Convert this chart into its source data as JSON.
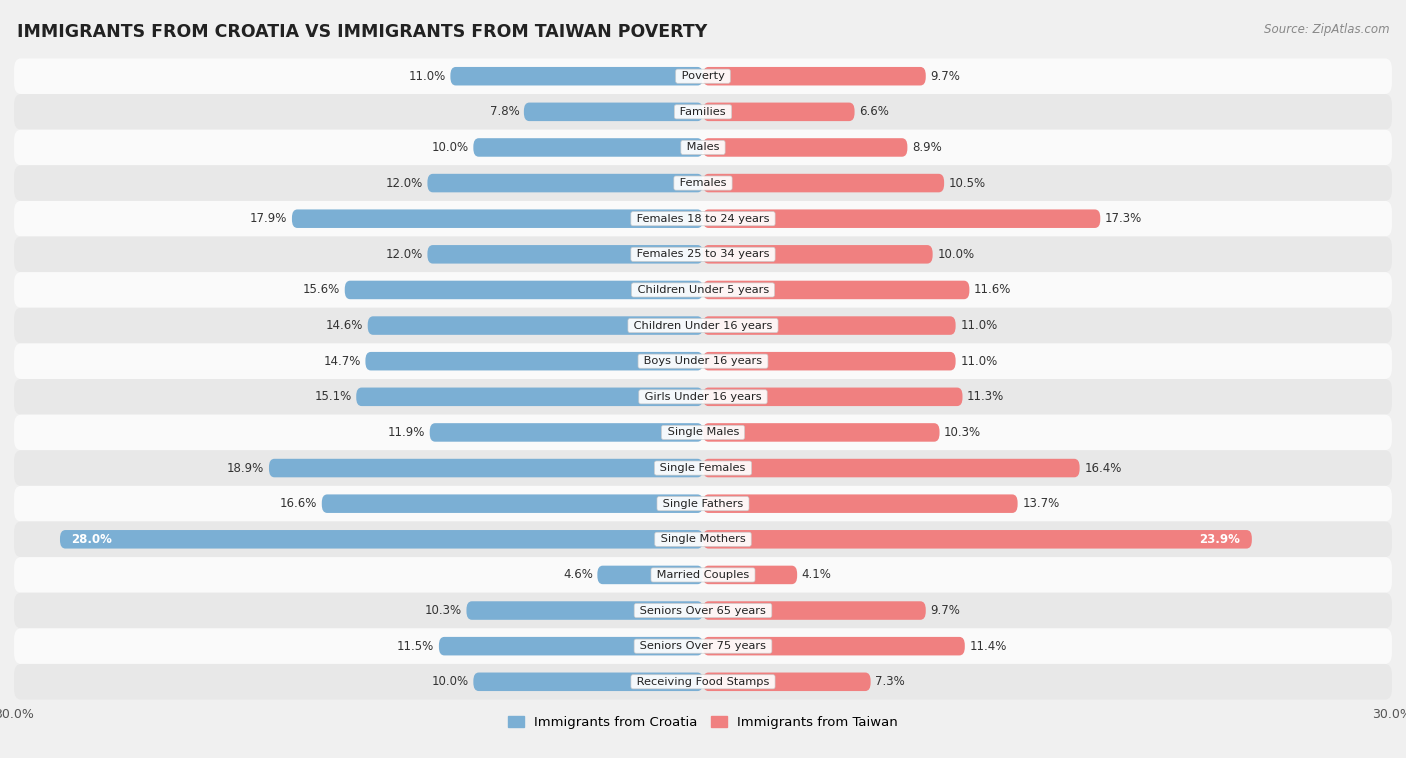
{
  "title": "IMMIGRANTS FROM CROATIA VS IMMIGRANTS FROM TAIWAN POVERTY",
  "source": "Source: ZipAtlas.com",
  "categories": [
    "Poverty",
    "Families",
    "Males",
    "Females",
    "Females 18 to 24 years",
    "Females 25 to 34 years",
    "Children Under 5 years",
    "Children Under 16 years",
    "Boys Under 16 years",
    "Girls Under 16 years",
    "Single Males",
    "Single Females",
    "Single Fathers",
    "Single Mothers",
    "Married Couples",
    "Seniors Over 65 years",
    "Seniors Over 75 years",
    "Receiving Food Stamps"
  ],
  "croatia_values": [
    11.0,
    7.8,
    10.0,
    12.0,
    17.9,
    12.0,
    15.6,
    14.6,
    14.7,
    15.1,
    11.9,
    18.9,
    16.6,
    28.0,
    4.6,
    10.3,
    11.5,
    10.0
  ],
  "taiwan_values": [
    9.7,
    6.6,
    8.9,
    10.5,
    17.3,
    10.0,
    11.6,
    11.0,
    11.0,
    11.3,
    10.3,
    16.4,
    13.7,
    23.9,
    4.1,
    9.7,
    11.4,
    7.3
  ],
  "croatia_color": "#7BAFD4",
  "taiwan_color": "#F08080",
  "axis_max": 30.0,
  "bar_height": 0.52,
  "background_color": "#f0f0f0",
  "row_light_color": "#fafafa",
  "row_dark_color": "#e8e8e8",
  "legend_croatia": "Immigrants from Croatia",
  "legend_taiwan": "Immigrants from Taiwan",
  "label_color_dark": "#333333",
  "label_color_white": "#ffffff"
}
